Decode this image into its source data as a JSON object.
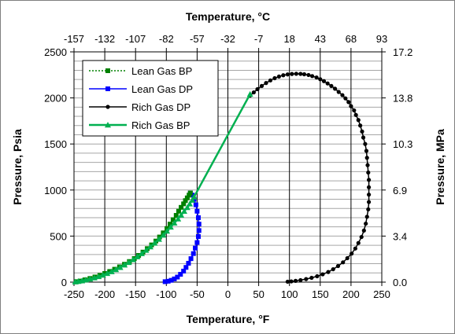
{
  "chart_data": {
    "type": "scatter",
    "xlabel": "Temperature, °F",
    "ylabel": "Pressure, Psia",
    "top_xlabel": "Temperature, °C",
    "right_ylabel": "Pressure, MPa",
    "xlim": [
      -250,
      250
    ],
    "ylim": [
      0,
      2500
    ],
    "x_ticks": [
      "-250",
      "-200",
      "-150",
      "-100",
      "-50",
      "0",
      "50",
      "100",
      "150",
      "200",
      "250"
    ],
    "y_ticks": [
      "0",
      "500",
      "1000",
      "1500",
      "2000",
      "2500"
    ],
    "top_x_ticks": [
      "-157",
      "-132",
      "-107",
      "-82",
      "-57",
      "-32",
      "-7",
      "18",
      "43",
      "68",
      "93"
    ],
    "right_y_ticks": [
      "0.0",
      "3.4",
      "6.9",
      "10.3",
      "13.8",
      "17.2"
    ],
    "grid": true,
    "legend_position": "top-left",
    "series": [
      {
        "name": "Lean Gas BP",
        "color": "#008000",
        "marker": "square",
        "line": "dotted",
        "x": [
          -246,
          -240,
          -232,
          -224,
          -216,
          -208,
          -200,
          -192,
          -184,
          -176,
          -168,
          -160,
          -152,
          -145,
          -138,
          -131,
          -124,
          -117,
          -111,
          -105,
          -99,
          -94,
          -89,
          -84,
          -80,
          -76,
          -72,
          -69,
          -66,
          -63,
          -61
        ],
        "y": [
          5,
          12,
          25,
          40,
          56,
          74,
          94,
          116,
          140,
          166,
          194,
          224,
          256,
          290,
          326,
          364,
          404,
          446,
          490,
          535,
          582,
          630,
          678,
          725,
          770,
          812,
          850,
          885,
          915,
          945,
          968
        ]
      },
      {
        "name": "Lean Gas DP",
        "color": "#0000ff",
        "marker": "square",
        "line": "solid",
        "x": [
          -102,
          -97,
          -92,
          -87,
          -82,
          -77,
          -72,
          -68,
          -64,
          -60,
          -56,
          -53,
          -50,
          -48,
          -47,
          -47,
          -48,
          -50,
          -52,
          -55,
          -58,
          -61
        ],
        "y": [
          5,
          10,
          20,
          35,
          55,
          85,
          120,
          160,
          205,
          255,
          310,
          370,
          430,
          495,
          560,
          630,
          700,
          770,
          840,
          900,
          945,
          968
        ]
      },
      {
        "name": "Rich Gas DP",
        "color": "#000000",
        "marker": "circle",
        "line": "solid",
        "x": [
          97,
          103,
          110,
          118,
          127,
          136,
          145,
          154,
          163,
          171,
          179,
          187,
          194,
          201,
          207,
          212,
          217,
          221,
          224,
          226,
          228,
          229,
          229,
          229,
          229,
          228,
          227,
          226,
          225,
          223,
          220,
          218,
          215,
          212,
          208,
          205,
          200,
          196,
          191,
          186,
          180,
          174,
          168,
          162,
          156,
          150,
          144,
          137,
          131,
          124,
          118,
          111,
          104,
          97,
          90,
          83,
          76,
          69,
          62,
          55,
          48,
          42,
          36
        ],
        "y": [
          5,
          8,
          14,
          22,
          33,
          47,
          64,
          85,
          110,
          140,
          175,
          215,
          260,
          310,
          365,
          425,
          490,
          560,
          635,
          710,
          790,
          870,
          950,
          1030,
          1110,
          1190,
          1270,
          1350,
          1425,
          1500,
          1570,
          1635,
          1700,
          1760,
          1815,
          1865,
          1910,
          1955,
          1995,
          2030,
          2065,
          2100,
          2130,
          2157,
          2182,
          2203,
          2222,
          2237,
          2249,
          2257,
          2261,
          2262,
          2260,
          2255,
          2246,
          2232,
          2214,
          2190,
          2162,
          2130,
          2095,
          2060,
          2025
        ]
      },
      {
        "name": "Rich Gas BP",
        "color": "#00b050",
        "marker": "triangle",
        "line": "solid",
        "x": [
          -248,
          -243,
          -237,
          -231,
          -224,
          -217,
          -210,
          -203,
          -196,
          -189,
          -182,
          -175,
          -168,
          -161,
          -154,
          -147,
          -140,
          -133,
          -126,
          -119,
          -112,
          -105,
          -99,
          -93,
          -87,
          -81,
          -76,
          -71,
          -66,
          -62,
          -58,
          -55,
          36
        ],
        "y": [
          3,
          8,
          15,
          24,
          34,
          46,
          60,
          76,
          94,
          114,
          136,
          160,
          186,
          214,
          244,
          276,
          310,
          346,
          384,
          424,
          466,
          510,
          554,
          598,
          642,
          686,
          728,
          770,
          810,
          850,
          890,
          925,
          2040
        ]
      }
    ]
  }
}
